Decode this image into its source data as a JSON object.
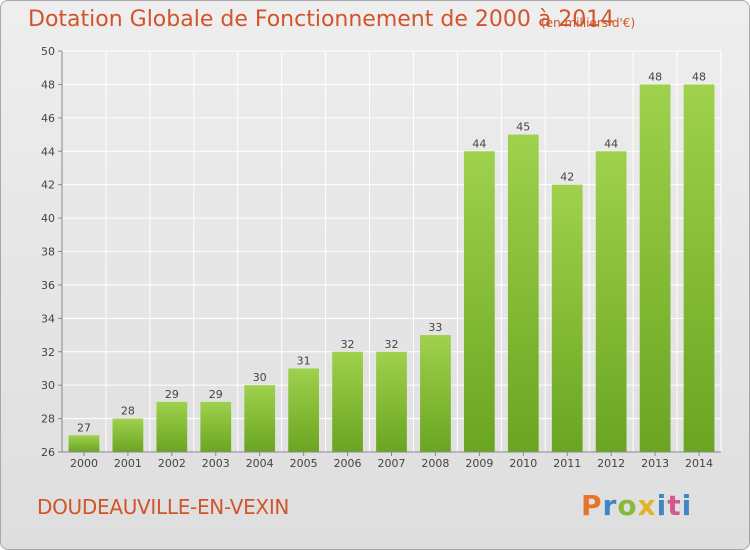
{
  "header": {
    "title": "Dotation Globale de Fonctionnement de 2000 à 2014",
    "unit": "(en milliers d'€)"
  },
  "footer": {
    "commune": "DOUDEAUVILLE-EN-VEXIN",
    "brand": [
      "P",
      "r",
      "o",
      "x",
      "i",
      "t",
      "i"
    ]
  },
  "colors": {
    "title": "#d2542a",
    "bar_light": "#9fd14d",
    "bar_dark": "#6aa521",
    "grid": "#ffffff",
    "axis": "#888888"
  },
  "chart_data": {
    "type": "bar",
    "title": "Dotation Globale de Fonctionnement de 2000 à 2014",
    "xlabel": "",
    "ylabel": "",
    "categories": [
      "2000",
      "2001",
      "2002",
      "2003",
      "2004",
      "2005",
      "2006",
      "2007",
      "2008",
      "2009",
      "2010",
      "2011",
      "2012",
      "2013",
      "2014"
    ],
    "values": [
      27,
      28,
      29,
      29,
      30,
      31,
      32,
      32,
      33,
      44,
      45,
      42,
      44,
      48,
      48
    ],
    "ylim": [
      26,
      50
    ],
    "yticks": [
      26,
      28,
      30,
      32,
      34,
      36,
      38,
      40,
      42,
      44,
      46,
      48,
      50
    ],
    "grid": true,
    "legend": "none"
  }
}
